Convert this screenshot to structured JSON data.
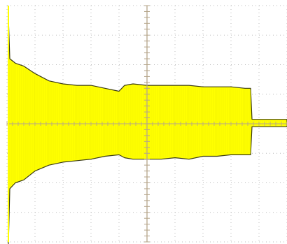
{
  "screen": {
    "background": "#ffffff",
    "grid_color": "#b8b8b8",
    "axis_color": "#b5a58a",
    "trace_color": "#ffff00",
    "trace_edge_color": "#3a3a14"
  },
  "chart_data": {
    "type": "area",
    "title": "",
    "xlabel": "",
    "ylabel": "",
    "grid": true,
    "xlim": [
      0,
      10
    ],
    "ylim": [
      -4,
      4
    ],
    "x_divisions": 10,
    "y_divisions": 8,
    "series": [
      {
        "x": [
          0.05,
          0.1,
          0.3,
          0.6,
          1.0,
          1.5,
          2.0,
          2.5,
          3.0,
          3.5,
          4.0,
          4.2,
          4.5,
          5.0,
          5.5,
          6.0,
          6.5,
          7.0,
          7.5,
          8.0,
          8.5,
          8.7,
          8.75,
          8.9,
          9.5,
          10.0
        ],
        "upper": [
          3.6,
          2.2,
          2.05,
          1.95,
          1.7,
          1.45,
          1.35,
          1.3,
          1.3,
          1.2,
          1.1,
          1.3,
          1.35,
          1.3,
          1.3,
          1.3,
          1.3,
          1.25,
          1.25,
          1.25,
          1.2,
          1.2,
          0.15,
          0.15,
          0.15,
          0.15
        ],
        "lower": [
          -4.1,
          -2.2,
          -2.0,
          -1.9,
          -1.6,
          -1.4,
          -1.3,
          -1.25,
          -1.2,
          -1.1,
          -1.05,
          -1.15,
          -1.2,
          -1.2,
          -1.2,
          -1.15,
          -1.2,
          -1.1,
          -1.1,
          -1.05,
          -1.05,
          -1.05,
          -0.1,
          -0.1,
          -0.1,
          -0.1
        ]
      }
    ]
  }
}
